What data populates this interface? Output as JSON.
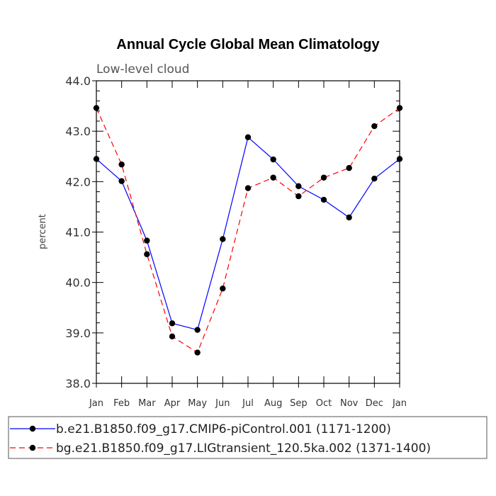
{
  "chart_data": {
    "type": "line",
    "title": "Annual Cycle Global Mean Climatology",
    "subtitle": "Low-level cloud",
    "xlabel": "",
    "ylabel": "percent",
    "ylim": [
      38.0,
      44.0
    ],
    "yticks": [
      "38.0",
      "39.0",
      "40.0",
      "41.0",
      "42.0",
      "43.0",
      "44.0"
    ],
    "categories": [
      "Jan",
      "Feb",
      "Mar",
      "Apr",
      "May",
      "Jun",
      "Jul",
      "Aug",
      "Sep",
      "Oct",
      "Nov",
      "Dec",
      "Jan"
    ],
    "grid": false,
    "legend_position": "bottom",
    "series": [
      {
        "name": "b.e21.B1850.f09_g17.CMIP6-piControl.001 (1171-1200)",
        "color": "#0000ff",
        "line_style": "solid",
        "values": [
          42.45,
          42.01,
          40.83,
          39.19,
          39.06,
          40.86,
          42.88,
          42.44,
          41.91,
          41.64,
          41.29,
          42.06,
          42.45
        ]
      },
      {
        "name": "bg.e21.B1850.f09_g17.LIGtransient_120.5ka.002 (1371-1400)",
        "color": "#ff0000",
        "line_style": "dashed",
        "values": [
          43.46,
          42.34,
          40.56,
          38.93,
          38.61,
          39.88,
          41.87,
          42.08,
          41.71,
          42.08,
          42.27,
          43.1,
          43.46
        ]
      }
    ]
  }
}
